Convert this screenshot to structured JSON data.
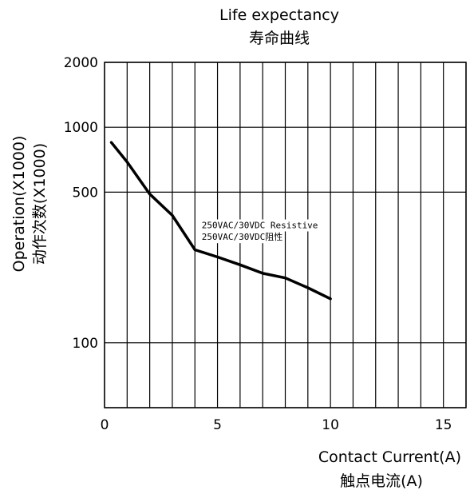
{
  "chart_data": {
    "type": "line",
    "title": "Life expectancy",
    "subtitle": "寿命曲线",
    "xlabel": "Contact Current(A)",
    "xlabel_cn": "触点电流(A)",
    "ylabel": "Operation(X1000)",
    "ylabel_cn": "动作次数(X1000)",
    "xlim": [
      0,
      16
    ],
    "ylim": [
      50,
      2000
    ],
    "y_scale": "log",
    "x_ticks": [
      {
        "value": 0,
        "label": "0"
      },
      {
        "value": 5,
        "label": "5"
      },
      {
        "value": 10,
        "label": "10"
      },
      {
        "value": 15,
        "label": "15"
      }
    ],
    "y_ticks": [
      {
        "value": 100,
        "label": "100"
      },
      {
        "value": 500,
        "label": "500"
      },
      {
        "value": 1000,
        "label": "1000"
      },
      {
        "value": 2000,
        "label": "2000"
      }
    ],
    "x_gridlines": [
      0,
      1,
      2,
      3,
      4,
      5,
      6,
      7,
      8,
      9,
      10,
      11,
      12,
      13,
      14,
      15,
      16
    ],
    "y_gridlines": [
      50,
      100,
      500,
      1000,
      2000
    ],
    "grid": true,
    "series": [
      {
        "x": [
          0.3,
          1,
          2,
          3,
          4,
          5,
          6,
          7,
          8,
          9,
          10
        ],
        "y": [
          850,
          690,
          490,
          390,
          270,
          250,
          230,
          210,
          200,
          180,
          160
        ]
      }
    ],
    "annotations": [
      {
        "text": "250VAC/30VDC Resistive",
        "x": 4.3,
        "y": 340
      },
      {
        "text": "250VAC/30VDC阻性",
        "x": 4.3,
        "y": 300
      }
    ]
  }
}
